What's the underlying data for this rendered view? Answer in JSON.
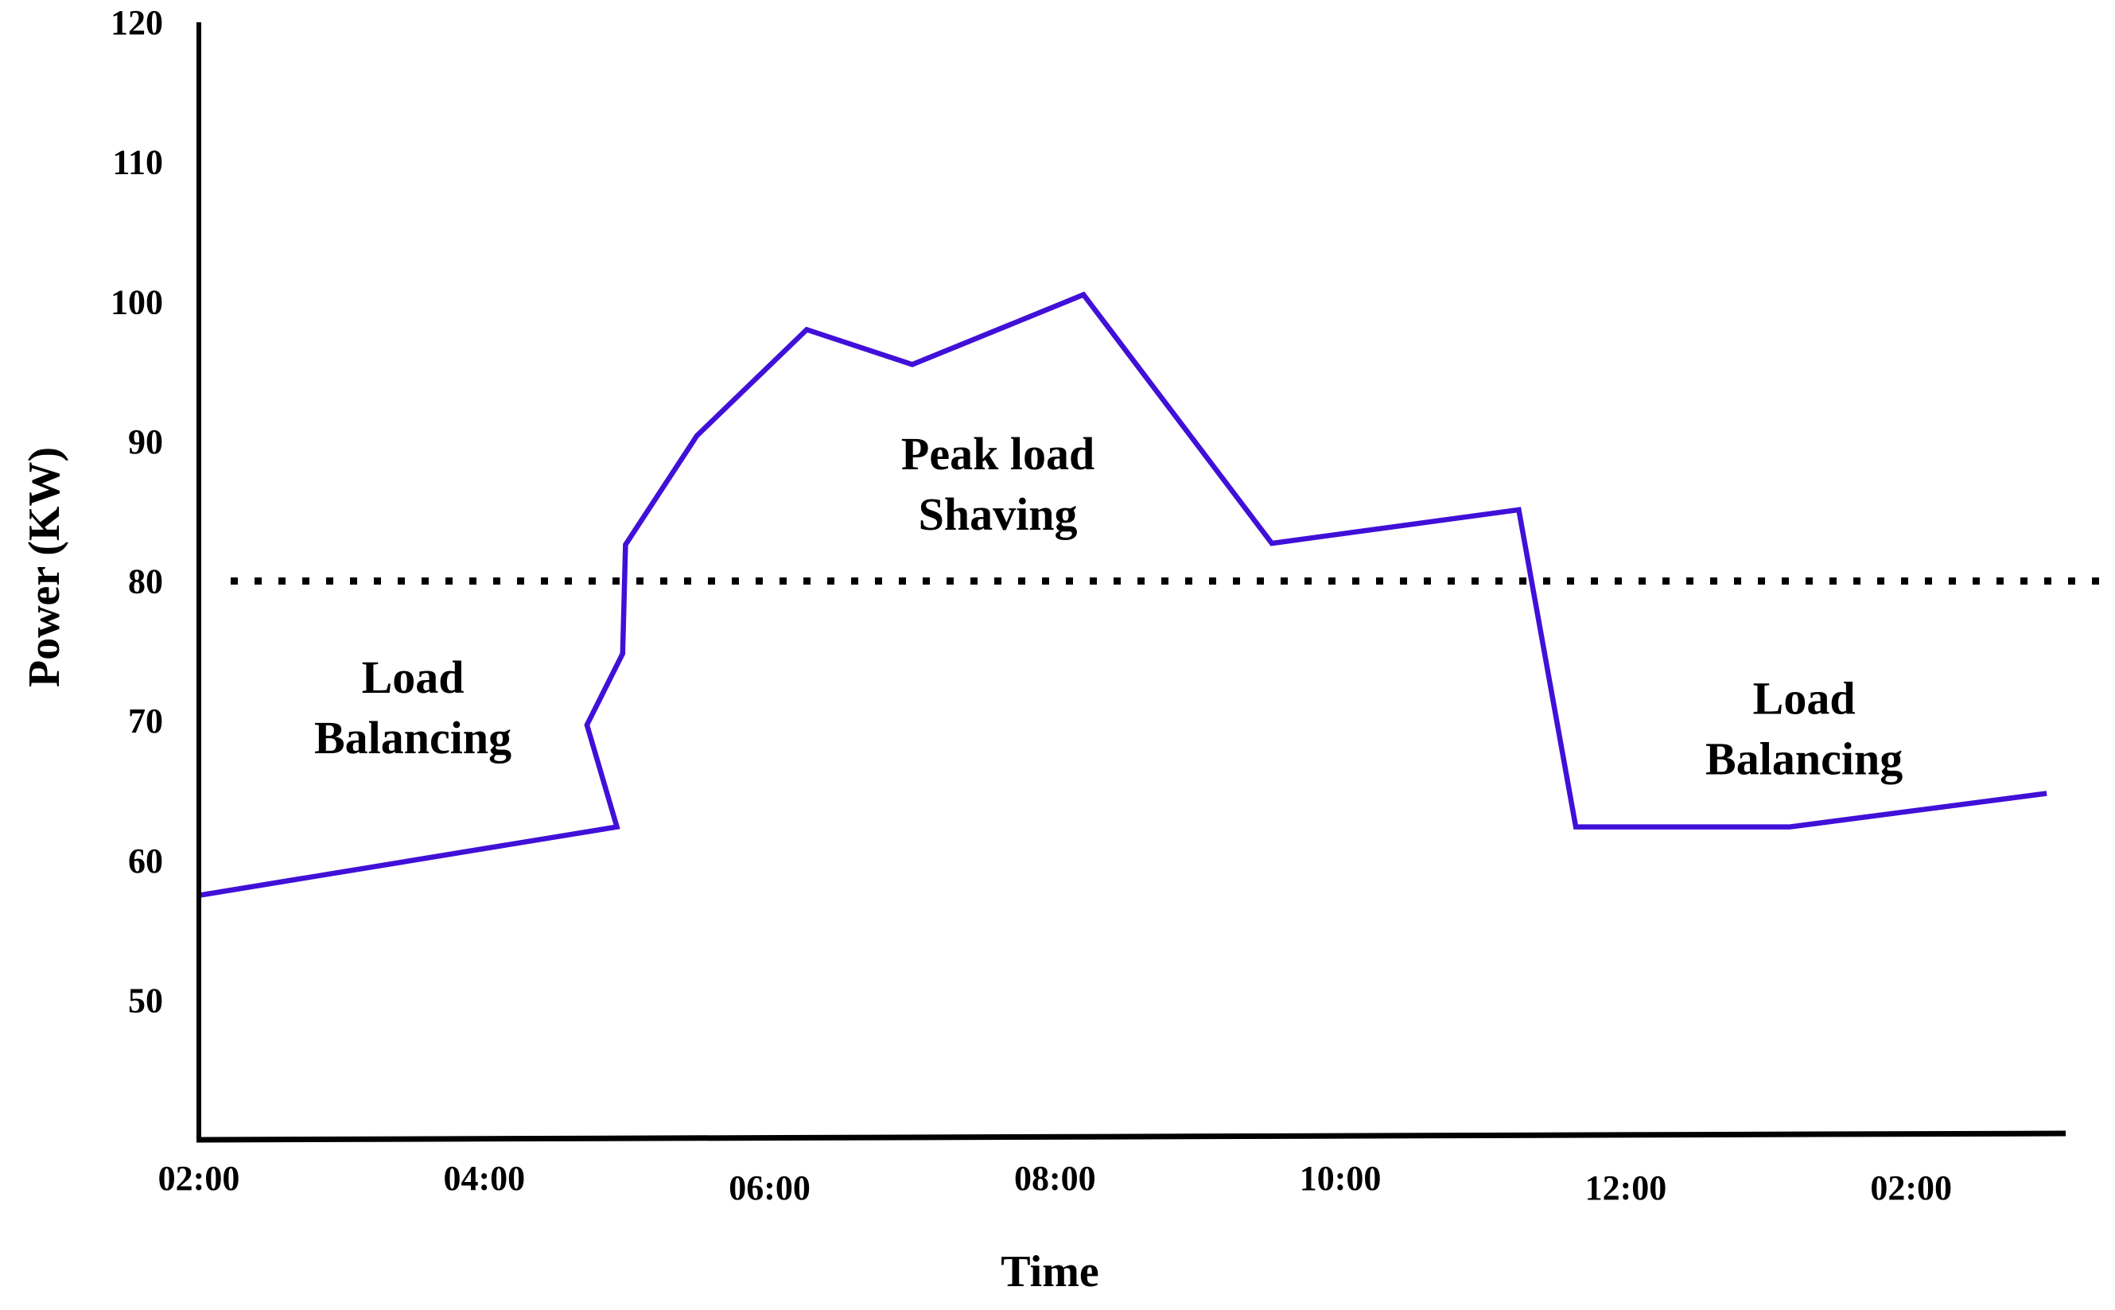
{
  "chart_data": {
    "type": "line",
    "title": "",
    "xlabel": "Time",
    "ylabel": "Power (KW)",
    "ylim": [
      40,
      120
    ],
    "xlim": [
      2,
      15.1
    ],
    "grid": false,
    "legend": "none",
    "y_ticks": [
      "50",
      "60",
      "70",
      "80",
      "90",
      "100",
      "110",
      "120"
    ],
    "y_tick_values": [
      50,
      60,
      70,
      80,
      90,
      100,
      110,
      120
    ],
    "x_ticks": [
      "02:00",
      "04:00",
      "06:00",
      "08:00",
      "10:00",
      "12:00",
      "02:00"
    ],
    "x_tick_values": [
      2,
      4,
      6,
      8,
      10,
      12,
      14
    ],
    "threshold": {
      "value": 80,
      "style": "dotted",
      "color": "#000000"
    },
    "series": [
      {
        "name": "Power",
        "color": "#4010d8",
        "x": [
          2.0,
          4.93,
          4.72,
          4.97,
          4.99,
          5.49,
          6.26,
          7.0,
          8.2,
          9.52,
          11.25,
          11.65,
          13.15,
          14.95
        ],
        "y": [
          57.5,
          62.4,
          69.7,
          74.8,
          82.6,
          90.4,
          98.0,
          95.5,
          100.5,
          82.7,
          85.1,
          62.4,
          62.4,
          64.8
        ]
      }
    ],
    "annotations": [
      {
        "id": "left",
        "lines": [
          "Load",
          "Balancing"
        ],
        "x": 3.5,
        "y": 72
      },
      {
        "id": "mid",
        "lines": [
          "Peak load",
          "Shaving"
        ],
        "x": 7.6,
        "y": 88
      },
      {
        "id": "right",
        "lines": [
          "Load",
          "Balancing"
        ],
        "x": 13.25,
        "y": 70.5
      }
    ],
    "colors": {
      "axis": "#000000",
      "line": "#4010d8"
    }
  }
}
